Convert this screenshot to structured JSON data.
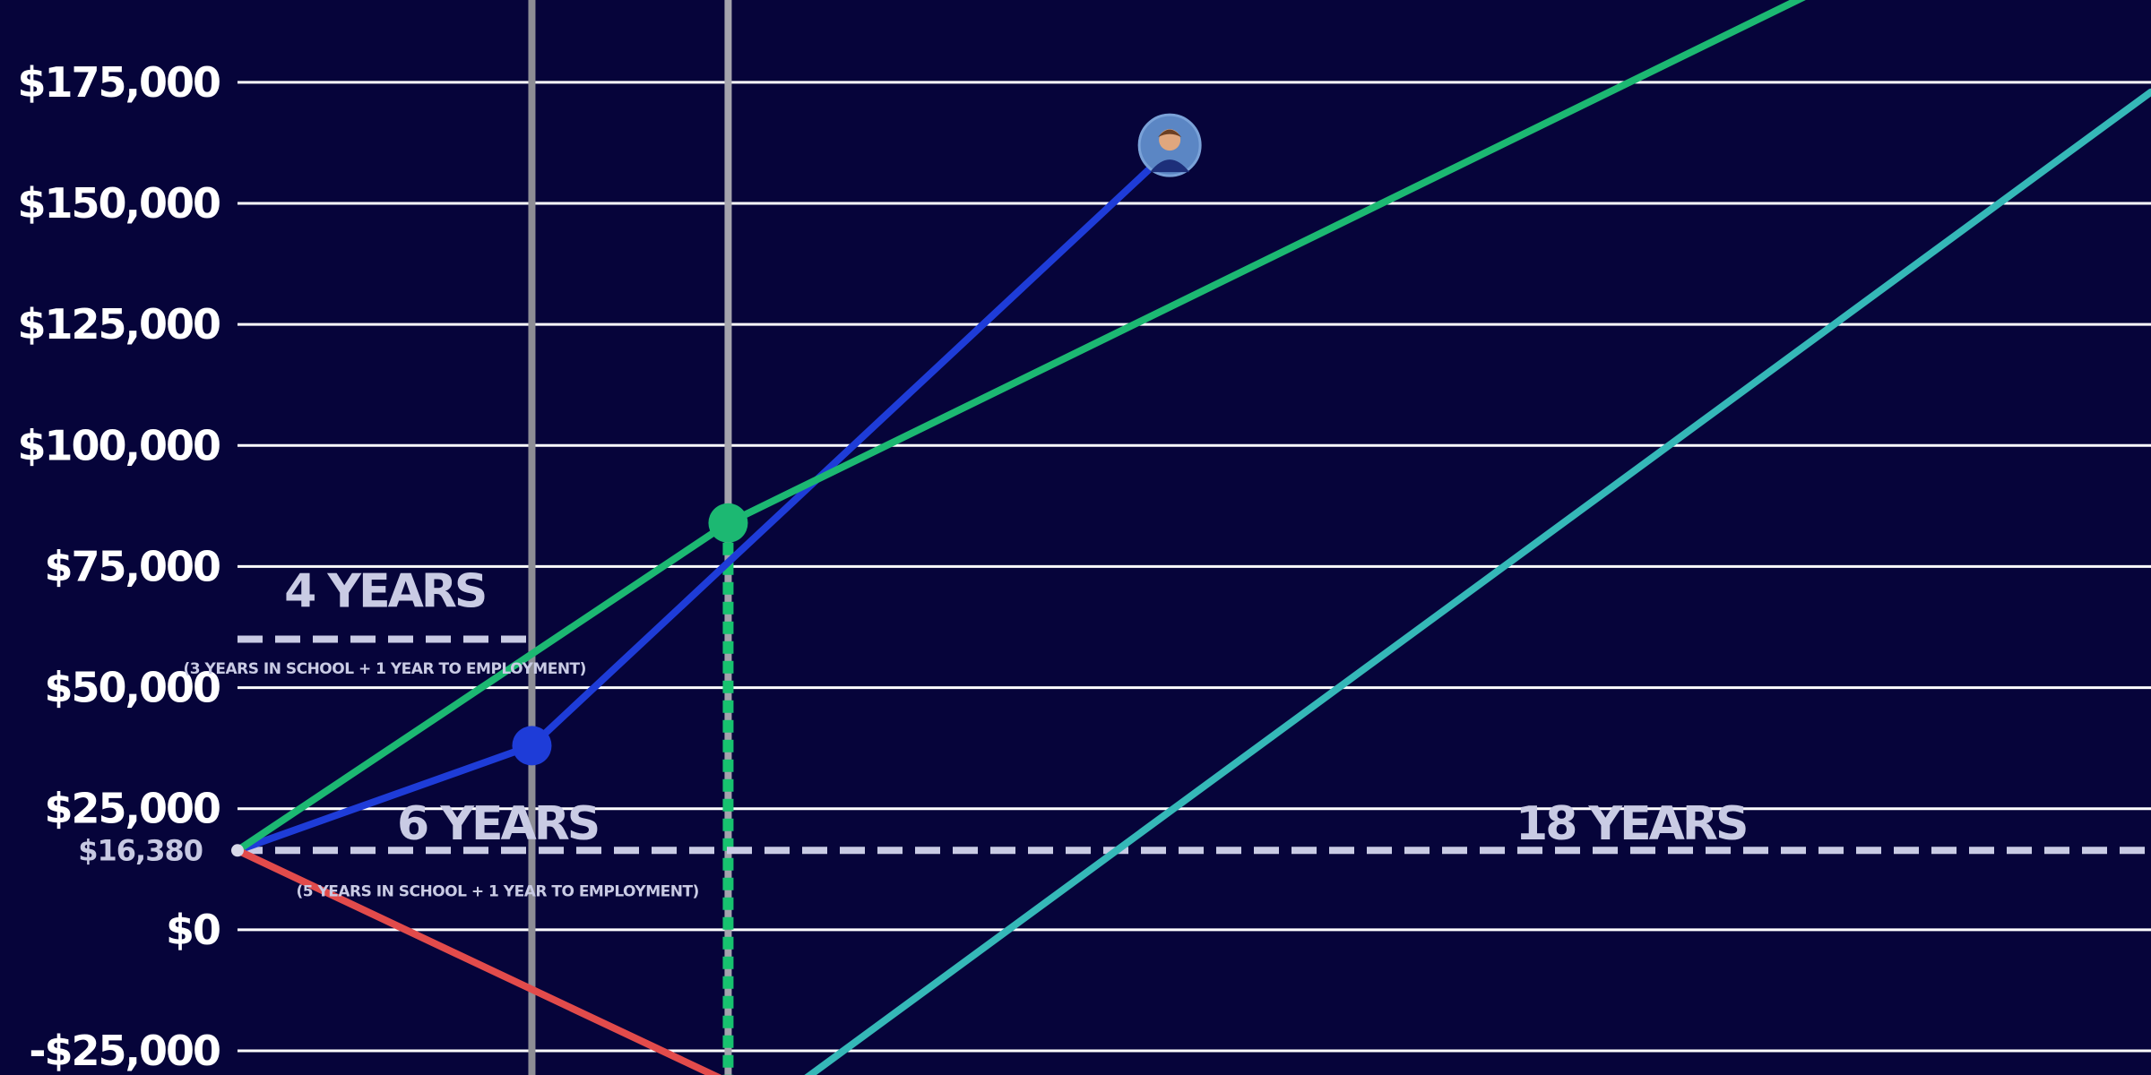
{
  "chart_data": {
    "type": "line",
    "title": "",
    "xlabel": "",
    "ylabel": "",
    "x_unit": "years",
    "xlim": [
      0,
      19.5
    ],
    "ylim": [
      -30000,
      192000
    ],
    "grid": true,
    "background_color": "#06043a",
    "y_ticks": [
      {
        "value": 175000,
        "label": "$175,000"
      },
      {
        "value": 150000,
        "label": "$150,000"
      },
      {
        "value": 125000,
        "label": "$125,000"
      },
      {
        "value": 100000,
        "label": "$100,000"
      },
      {
        "value": 75000,
        "label": "$75,000"
      },
      {
        "value": 50000,
        "label": "$50,000"
      },
      {
        "value": 25000,
        "label": "$25,000"
      },
      {
        "value": 16380,
        "label": "$16,380",
        "style": "small"
      },
      {
        "value": 0,
        "label": "$0"
      },
      {
        "value": -25000,
        "label": "-$25,000"
      }
    ],
    "series": [
      {
        "color": "#1e3cd8",
        "x": [
          0,
          3,
          9.5
        ],
        "y": [
          16380,
          38000,
          161000
        ],
        "markers": [
          1
        ]
      },
      {
        "color": "#1cb872",
        "x": [
          0,
          5,
          16
        ],
        "y": [
          16380,
          84000,
          193000
        ],
        "markers": [
          1
        ]
      },
      {
        "color": "#35b8b8",
        "x": [
          5.3,
          19.5
        ],
        "y": [
          -38000,
          173000
        ],
        "markers": []
      },
      {
        "color": "#e24b4b",
        "x": [
          0,
          6
        ],
        "y": [
          16380,
          -41000
        ],
        "markers": []
      }
    ],
    "vertical_lines": [
      {
        "x": 3,
        "color": "#8d8d95",
        "style": "solid"
      },
      {
        "x": 5,
        "color": "#a4a4ad",
        "style": "solid"
      },
      {
        "x": 5,
        "color": "#17c26f",
        "style": "dotted",
        "from_y": 84000
      }
    ],
    "reference_lines": [
      {
        "y": 60000,
        "x_from": 0,
        "x_to": 3,
        "color": "#c9cbe4",
        "style": "dashed"
      },
      {
        "y": 16380,
        "x_from": 0,
        "x_to": 19.5,
        "color": "#c9cbe4",
        "style": "dashed"
      }
    ],
    "annotations": [
      {
        "text": "4 YEARS",
        "x": 1.5,
        "y": 70000,
        "size": "large"
      },
      {
        "text": "(3 YEARS IN SCHOOL + 1 YEAR TO EMPLOYMENT)",
        "x": 1.5,
        "y": 54000,
        "size": "small"
      },
      {
        "text": "6 YEARS",
        "x": 2.65,
        "y": 22000,
        "size": "large"
      },
      {
        "text": "(5 YEARS IN SCHOOL + 1 YEAR TO EMPLOYMENT)",
        "x": 2.65,
        "y": 8000,
        "size": "small"
      },
      {
        "text": "18 YEARS",
        "x": 14.2,
        "y": 22000,
        "size": "large"
      }
    ],
    "avatar": {
      "x": 9.5,
      "y": 162000,
      "icon": "person-avatar-icon"
    }
  }
}
